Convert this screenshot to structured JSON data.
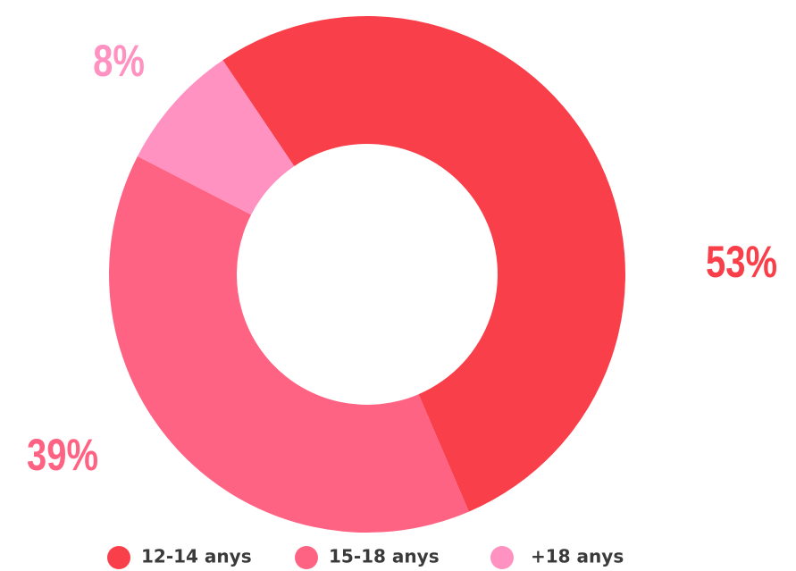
{
  "chart_data": {
    "type": "donut",
    "categories": [
      "12-14 anys",
      "15-18 anys",
      "+18 anys"
    ],
    "values": [
      53,
      39,
      8
    ],
    "value_labels": [
      "53%",
      "39%",
      "8%"
    ],
    "colors": [
      "#f93f4a",
      "#ff6384",
      "#ff92c0"
    ]
  }
}
